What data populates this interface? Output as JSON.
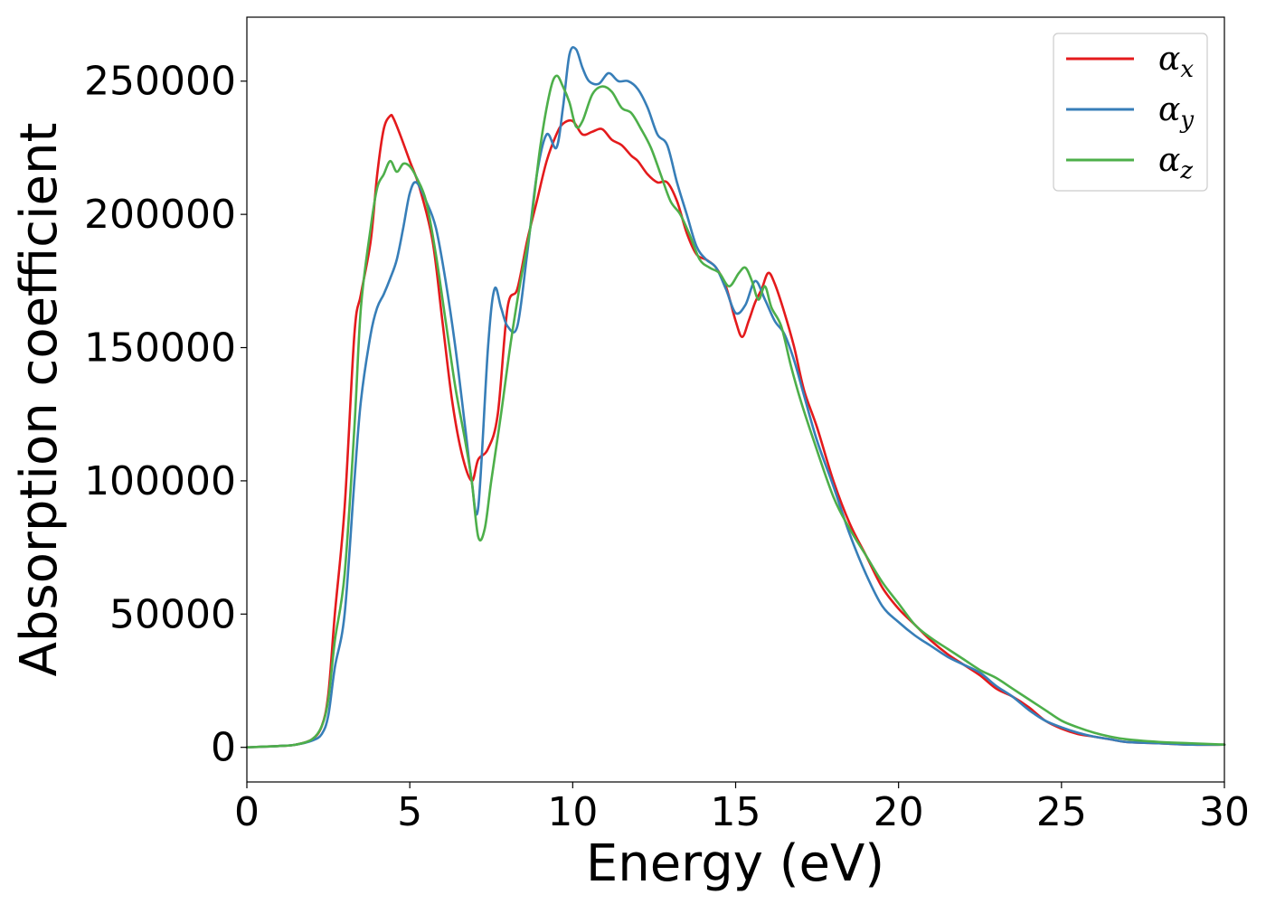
{
  "chart_data": {
    "type": "line",
    "title": "",
    "xlabel": "Energy (eV)",
    "ylabel": "Absorption coefficient",
    "xlim": [
      0,
      30
    ],
    "ylim": [
      -13000,
      274000
    ],
    "xticks": [
      0,
      5,
      10,
      15,
      20,
      25,
      30
    ],
    "yticks": [
      0,
      50000,
      100000,
      150000,
      200000,
      250000
    ],
    "grid": false,
    "legend_position": "top-right",
    "series": [
      {
        "name": "α_x",
        "legend": {
          "base": "α",
          "sub": "x"
        },
        "color": "#e41a1c",
        "x": [
          0,
          1,
          1.5,
          2,
          2.3,
          2.5,
          2.7,
          3,
          3.3,
          3.5,
          3.8,
          4,
          4.2,
          4.4,
          4.5,
          4.7,
          5,
          5.3,
          5.7,
          6,
          6.3,
          6.6,
          6.9,
          7.1,
          7.4,
          7.7,
          8,
          8.3,
          8.6,
          8.9,
          9.2,
          9.5,
          9.7,
          10,
          10.3,
          10.6,
          10.9,
          11.2,
          11.5,
          11.8,
          12,
          12.3,
          12.6,
          12.9,
          13.2,
          13.5,
          13.8,
          14.1,
          14.4,
          14.7,
          15,
          15.2,
          15.4,
          15.6,
          15.8,
          16,
          16.2,
          16.5,
          16.8,
          17.1,
          17.5,
          18,
          18.5,
          19,
          19.5,
          20,
          20.5,
          21,
          21.5,
          22,
          22.5,
          23,
          23.5,
          24,
          24.5,
          25,
          25.5,
          26,
          26.5,
          27,
          28,
          29,
          30
        ],
        "values": [
          0,
          500,
          1000,
          3000,
          8000,
          20000,
          50000,
          90000,
          155000,
          170000,
          190000,
          215000,
          232000,
          237000,
          236000,
          230000,
          220000,
          210000,
          190000,
          160000,
          130000,
          110000,
          100000,
          108000,
          112000,
          125000,
          165000,
          172000,
          190000,
          205000,
          220000,
          230000,
          234000,
          235000,
          230000,
          231000,
          232000,
          228000,
          226000,
          222000,
          220000,
          215000,
          212000,
          212000,
          205000,
          193000,
          185000,
          183000,
          180000,
          173000,
          160000,
          154000,
          160000,
          167000,
          172000,
          178000,
          174000,
          163000,
          150000,
          134000,
          120000,
          100000,
          84000,
          72000,
          60000,
          52000,
          46000,
          40000,
          35000,
          31000,
          27000,
          22000,
          19000,
          15000,
          10000,
          7000,
          5000,
          4000,
          3000,
          2000,
          1500,
          1000,
          1000
        ]
      },
      {
        "name": "α_y",
        "legend": {
          "base": "α",
          "sub": "y"
        },
        "color": "#377eb8",
        "x": [
          0,
          1,
          1.5,
          2,
          2.3,
          2.5,
          2.7,
          3,
          3.3,
          3.5,
          3.8,
          4,
          4.2,
          4.4,
          4.6,
          4.8,
          5,
          5.2,
          5.5,
          5.8,
          6.1,
          6.4,
          6.7,
          6.9,
          7.1,
          7.4,
          7.6,
          7.8,
          8,
          8.3,
          8.6,
          8.9,
          9.2,
          9.5,
          9.7,
          9.9,
          10.1,
          10.3,
          10.5,
          10.8,
          11.1,
          11.4,
          11.7,
          12,
          12.3,
          12.6,
          12.9,
          13.2,
          13.5,
          13.8,
          14.1,
          14.4,
          14.7,
          15,
          15.3,
          15.6,
          15.9,
          16.2,
          16.5,
          16.8,
          17.1,
          17.5,
          18,
          18.5,
          19,
          19.5,
          20,
          20.5,
          21,
          21.5,
          22,
          22.5,
          23,
          23.5,
          24,
          24.5,
          25,
          25.5,
          26,
          26.5,
          27,
          28,
          29,
          30
        ],
        "values": [
          0,
          500,
          1000,
          2500,
          5000,
          12000,
          30000,
          50000,
          100000,
          130000,
          155000,
          165000,
          170000,
          176000,
          183000,
          195000,
          208000,
          212000,
          205000,
          195000,
          175000,
          150000,
          120000,
          100000,
          90000,
          150000,
          172000,
          165000,
          158000,
          158000,
          185000,
          215000,
          230000,
          225000,
          240000,
          260000,
          262000,
          255000,
          250000,
          249000,
          253000,
          250000,
          250000,
          247000,
          240000,
          230000,
          226000,
          212000,
          200000,
          188000,
          183000,
          180000,
          172000,
          163000,
          166000,
          175000,
          168000,
          160000,
          155000,
          145000,
          132000,
          115000,
          98000,
          80000,
          65000,
          53000,
          47000,
          42000,
          38000,
          34000,
          31000,
          28000,
          23000,
          19000,
          14000,
          10000,
          7500,
          5500,
          4000,
          3000,
          2000,
          1500,
          1000,
          1000
        ]
      },
      {
        "name": "α_z",
        "legend": {
          "base": "α",
          "sub": "z"
        },
        "color": "#4daf4a",
        "x": [
          0,
          1,
          1.5,
          2,
          2.3,
          2.5,
          2.7,
          3,
          3.3,
          3.5,
          3.8,
          4,
          4.2,
          4.4,
          4.6,
          4.8,
          5,
          5.2,
          5.5,
          5.8,
          6.1,
          6.4,
          6.7,
          6.9,
          7.1,
          7.3,
          7.5,
          7.8,
          8.1,
          8.4,
          8.7,
          9,
          9.3,
          9.5,
          9.7,
          9.9,
          10.1,
          10.3,
          10.6,
          10.9,
          11.2,
          11.5,
          11.8,
          12.1,
          12.4,
          12.7,
          13,
          13.3,
          13.6,
          13.9,
          14.2,
          14.5,
          14.8,
          15.1,
          15.3,
          15.5,
          15.7,
          15.9,
          16.1,
          16.4,
          16.7,
          17,
          17.4,
          18,
          18.5,
          19,
          19.5,
          20,
          20.5,
          21,
          21.5,
          22,
          22.5,
          23,
          23.5,
          24,
          24.5,
          25,
          25.5,
          26,
          26.5,
          27,
          28,
          29,
          30
        ],
        "values": [
          0,
          500,
          1000,
          3000,
          8000,
          18000,
          40000,
          65000,
          120000,
          165000,
          195000,
          210000,
          215000,
          220000,
          216000,
          219000,
          218000,
          214000,
          205000,
          185000,
          160000,
          135000,
          115000,
          100000,
          79000,
          82000,
          100000,
          125000,
          152000,
          175000,
          195000,
          225000,
          246000,
          252000,
          248000,
          242000,
          233000,
          235000,
          245000,
          248000,
          246000,
          240000,
          238000,
          232000,
          225000,
          215000,
          205000,
          200000,
          192000,
          183000,
          180000,
          178000,
          173000,
          178000,
          180000,
          175000,
          168000,
          173000,
          165000,
          158000,
          143000,
          130000,
          115000,
          94000,
          82000,
          72000,
          62000,
          54000,
          46000,
          41000,
          37000,
          33000,
          29000,
          26000,
          22000,
          18000,
          14000,
          10000,
          7500,
          5500,
          4000,
          3000,
          2000,
          1500,
          1000
        ]
      }
    ]
  }
}
